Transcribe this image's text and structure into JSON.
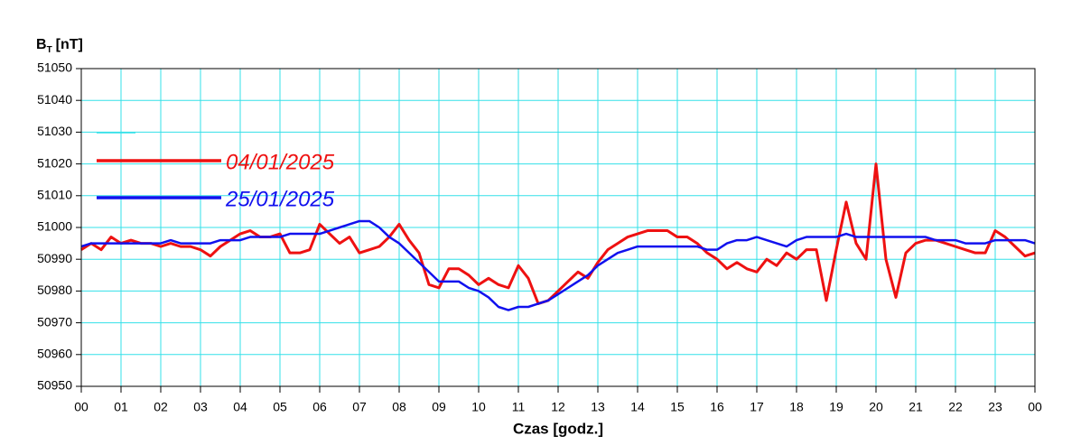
{
  "chart_data": {
    "type": "line",
    "ylabel": {
      "main": "B",
      "sub": "T",
      "unit": "[nT]"
    },
    "xlabel": "Czas [godz.]",
    "xlim": [
      0,
      24
    ],
    "ylim": [
      50950,
      51050
    ],
    "yticks": [
      50950,
      50960,
      50970,
      50980,
      50990,
      51000,
      51010,
      51020,
      51030,
      51040,
      51050
    ],
    "xticks": [
      {
        "value": 0,
        "label": "00"
      },
      {
        "value": 1,
        "label": "01"
      },
      {
        "value": 2,
        "label": "02"
      },
      {
        "value": 3,
        "label": "03"
      },
      {
        "value": 4,
        "label": "04"
      },
      {
        "value": 5,
        "label": "05"
      },
      {
        "value": 6,
        "label": "06"
      },
      {
        "value": 7,
        "label": "07"
      },
      {
        "value": 8,
        "label": "08"
      },
      {
        "value": 9,
        "label": "09"
      },
      {
        "value": 10,
        "label": "10"
      },
      {
        "value": 11,
        "label": "11"
      },
      {
        "value": 12,
        "label": "12"
      },
      {
        "value": 13,
        "label": "13"
      },
      {
        "value": 14,
        "label": "14"
      },
      {
        "value": 15,
        "label": "15"
      },
      {
        "value": 16,
        "label": "16"
      },
      {
        "value": 17,
        "label": "17"
      },
      {
        "value": 18,
        "label": "18"
      },
      {
        "value": 19,
        "label": "19"
      },
      {
        "value": 20,
        "label": "20"
      },
      {
        "value": 21,
        "label": "21"
      },
      {
        "value": 22,
        "label": "22"
      },
      {
        "value": 23,
        "label": "23"
      },
      {
        "value": 24,
        "label": "00"
      }
    ],
    "grid": true,
    "grid_color": "#33e0e8",
    "legend": "upper left",
    "x": [
      0,
      0.25,
      0.5,
      0.75,
      1,
      1.25,
      1.5,
      1.75,
      2,
      2.25,
      2.5,
      2.75,
      3,
      3.25,
      3.5,
      3.75,
      4,
      4.25,
      4.5,
      4.75,
      5,
      5.25,
      5.5,
      5.75,
      6,
      6.25,
      6.5,
      6.75,
      7,
      7.25,
      7.5,
      7.75,
      8,
      8.25,
      8.5,
      8.75,
      9,
      9.25,
      9.5,
      9.75,
      10,
      10.25,
      10.5,
      10.75,
      11,
      11.25,
      11.5,
      11.75,
      12,
      12.25,
      12.5,
      12.75,
      13,
      13.25,
      13.5,
      13.75,
      14,
      14.25,
      14.5,
      14.75,
      15,
      15.25,
      15.5,
      15.75,
      16,
      16.25,
      16.5,
      16.75,
      17,
      17.25,
      17.5,
      17.75,
      18,
      18.25,
      18.5,
      18.75,
      19,
      19.25,
      19.5,
      19.75,
      20,
      20.25,
      20.5,
      20.75,
      21,
      21.25,
      21.5,
      21.75,
      22,
      22.25,
      22.5,
      22.75,
      23,
      23.25,
      23.5,
      23.75,
      24
    ],
    "series": [
      {
        "name": "04/01/2025",
        "color": "#ee1111",
        "values": [
          50993,
          50995,
          50993,
          50997,
          50995,
          50996,
          50995,
          50995,
          50994,
          50995,
          50994,
          50994,
          50993,
          50991,
          50994,
          50996,
          50998,
          50999,
          50997,
          50997,
          50998,
          50992,
          50992,
          50993,
          51001,
          50998,
          50995,
          50997,
          50992,
          50993,
          50994,
          50997,
          51001,
          50996,
          50992,
          50982,
          50981,
          50987,
          50987,
          50985,
          50982,
          50984,
          50982,
          50981,
          50988,
          50984,
          50976,
          50977,
          50980,
          50983,
          50986,
          50984,
          50989,
          50993,
          50995,
          50997,
          50998,
          50999,
          50999,
          50999,
          50997,
          50997,
          50995,
          50992,
          50990,
          50987,
          50989,
          50987,
          50986,
          50990,
          50988,
          50992,
          50990,
          50993,
          50993,
          50977,
          50993,
          51008,
          50995,
          50990,
          51020,
          50990,
          50978,
          50992,
          50995,
          50996,
          50996,
          50995,
          50994,
          50993,
          50992,
          50992,
          50999,
          50997,
          50994,
          50991,
          50992
        ]
      },
      {
        "name": "25/01/2025",
        "color": "#1111ee",
        "values": [
          50994,
          50995,
          50995,
          50995,
          50995,
          50995,
          50995,
          50995,
          50995,
          50996,
          50995,
          50995,
          50995,
          50995,
          50996,
          50996,
          50996,
          50997,
          50997,
          50997,
          50997,
          50998,
          50998,
          50998,
          50998,
          50999,
          51000,
          51001,
          51002,
          51002,
          51000,
          50997,
          50995,
          50992,
          50989,
          50986,
          50983,
          50983,
          50983,
          50981,
          50980,
          50978,
          50975,
          50974,
          50975,
          50975,
          50976,
          50977,
          50979,
          50981,
          50983,
          50985,
          50988,
          50990,
          50992,
          50993,
          50994,
          50994,
          50994,
          50994,
          50994,
          50994,
          50994,
          50993,
          50993,
          50995,
          50996,
          50996,
          50997,
          50996,
          50995,
          50994,
          50996,
          50997,
          50997,
          50997,
          50997,
          50998,
          50997,
          50997,
          50997,
          50997,
          50997,
          50997,
          50997,
          50997,
          50996,
          50996,
          50996,
          50995,
          50995,
          50995,
          50996,
          50996,
          50996,
          50996,
          50995
        ]
      }
    ]
  }
}
